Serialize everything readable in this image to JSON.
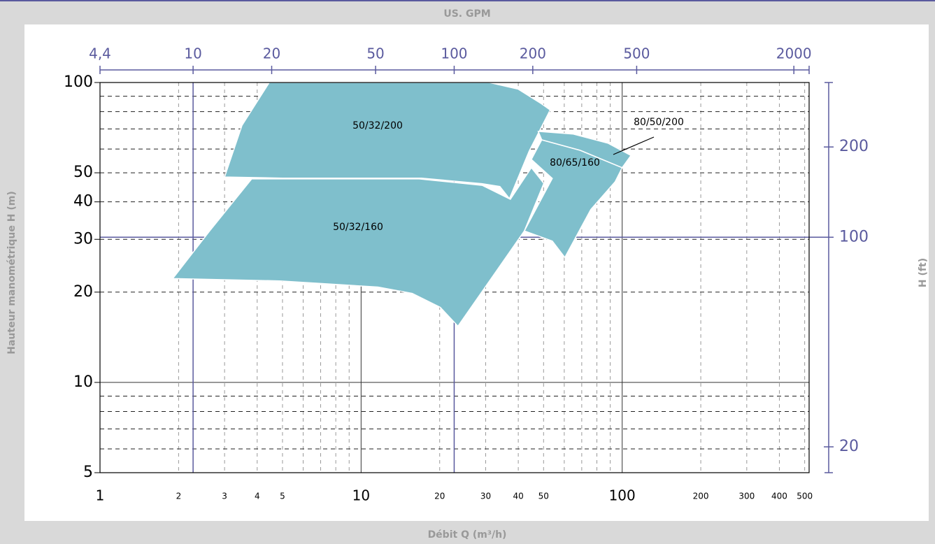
{
  "chart_data": {
    "type": "region",
    "title": "US. GPM",
    "xlabel": "Débit Q (m³/h)",
    "ylabel": "Hauteur manométrique H (m)",
    "y2label": "H (ft)",
    "xscale": "log",
    "yscale": "log",
    "xlim": [
      1,
      520
    ],
    "ylim": [
      5,
      100
    ],
    "xticks": [
      1,
      2,
      3,
      4,
      5,
      10,
      20,
      30,
      40,
      50,
      100,
      200,
      300,
      400,
      500
    ],
    "yticks": [
      5,
      10,
      20,
      30,
      40,
      50,
      100
    ],
    "x2lim": [
      4.4,
      2288
    ],
    "x2ticks": [
      {
        "value": 4.4,
        "label": "4,4"
      },
      10,
      20,
      50,
      100,
      200,
      500,
      2000
    ],
    "y2lim": [
      16.4,
      328.1
    ],
    "y2ticks": [
      20,
      100,
      200
    ],
    "grid": true,
    "color": "#7fbfcc",
    "series": [
      {
        "name": "50/32/200",
        "x": [
          3.0,
          3.5,
          4.45,
          31,
          40,
          49,
          53,
          44,
          37,
          34,
          29,
          17,
          5
        ],
        "y": [
          48.4,
          72,
          100,
          100,
          95,
          85,
          81,
          59,
          41,
          45,
          46,
          48,
          48
        ]
      },
      {
        "name": "50/32/160",
        "x": [
          1.9,
          2.63,
          3.81,
          16.7,
          29.1,
          37.3,
          44.9,
          50.1,
          42.2,
          23.5,
          20.1,
          15.7,
          11.6,
          4.88
        ],
        "y": [
          22.2,
          32,
          47.7,
          47.7,
          45.4,
          40.8,
          52,
          46.1,
          32,
          15.4,
          17.8,
          19.8,
          20.8,
          21.8
        ]
      },
      {
        "name": "80/65/160",
        "x": [
          42.2,
          54,
          44.9,
          49.2,
          69.1,
          100,
          94,
          75.8,
          60.3,
          54
        ],
        "y": [
          32,
          47.9,
          55.4,
          64.4,
          59.4,
          52,
          46.7,
          37.7,
          26.1,
          29.6
        ]
      },
      {
        "name": "80/50/200",
        "x": [
          47.7,
          49.2,
          69.1,
          100,
          108,
          88.4,
          65
        ],
        "y": [
          68.7,
          64.4,
          59.4,
          52,
          57.1,
          62.7,
          67.3
        ]
      }
    ]
  }
}
